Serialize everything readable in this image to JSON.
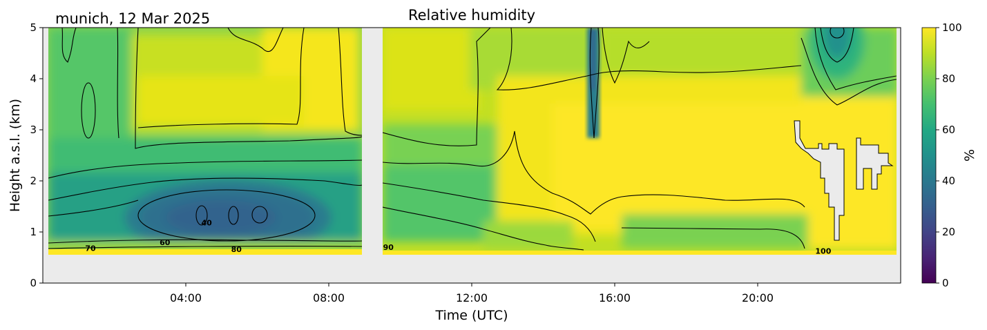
{
  "chart_data": {
    "type": "heatmap",
    "title": "Relative humidity",
    "subtitle": "munich, 12 Mar 2025",
    "xlabel": "Time (UTC)",
    "ylabel": "Height a.s.l. (km)",
    "xlim": [
      "00:00",
      "24:00"
    ],
    "ylim": [
      0,
      5
    ],
    "x_ticks": [
      "04:00",
      "08:00",
      "12:00",
      "16:00",
      "20:00"
    ],
    "y_ticks": [
      "0",
      "1",
      "2",
      "3",
      "4",
      "5"
    ],
    "colorbar": {
      "label": "%",
      "range": [
        0,
        100
      ],
      "ticks": [
        "0",
        "20",
        "40",
        "60",
        "80",
        "100"
      ],
      "colormap": "viridis"
    },
    "contour_levels": [
      40,
      50,
      60,
      70,
      80,
      90,
      100
    ],
    "contour_labels": [
      {
        "text": "70",
        "time": "01:20",
        "height": 0.68
      },
      {
        "text": "60",
        "time": "03:25",
        "height": 0.8
      },
      {
        "text": "40",
        "time": "04:35",
        "height": 1.18
      },
      {
        "text": "80",
        "time": "05:25",
        "height": 0.66
      },
      {
        "text": "90",
        "time": "09:40",
        "height": 0.7
      },
      {
        "text": "100",
        "time": "21:50",
        "height": 0.63
      }
    ],
    "data_gap": {
      "start": "08:55",
      "end": "09:30"
    },
    "lowest_data_height": 0.55,
    "missing_color": "#ebebeb"
  }
}
